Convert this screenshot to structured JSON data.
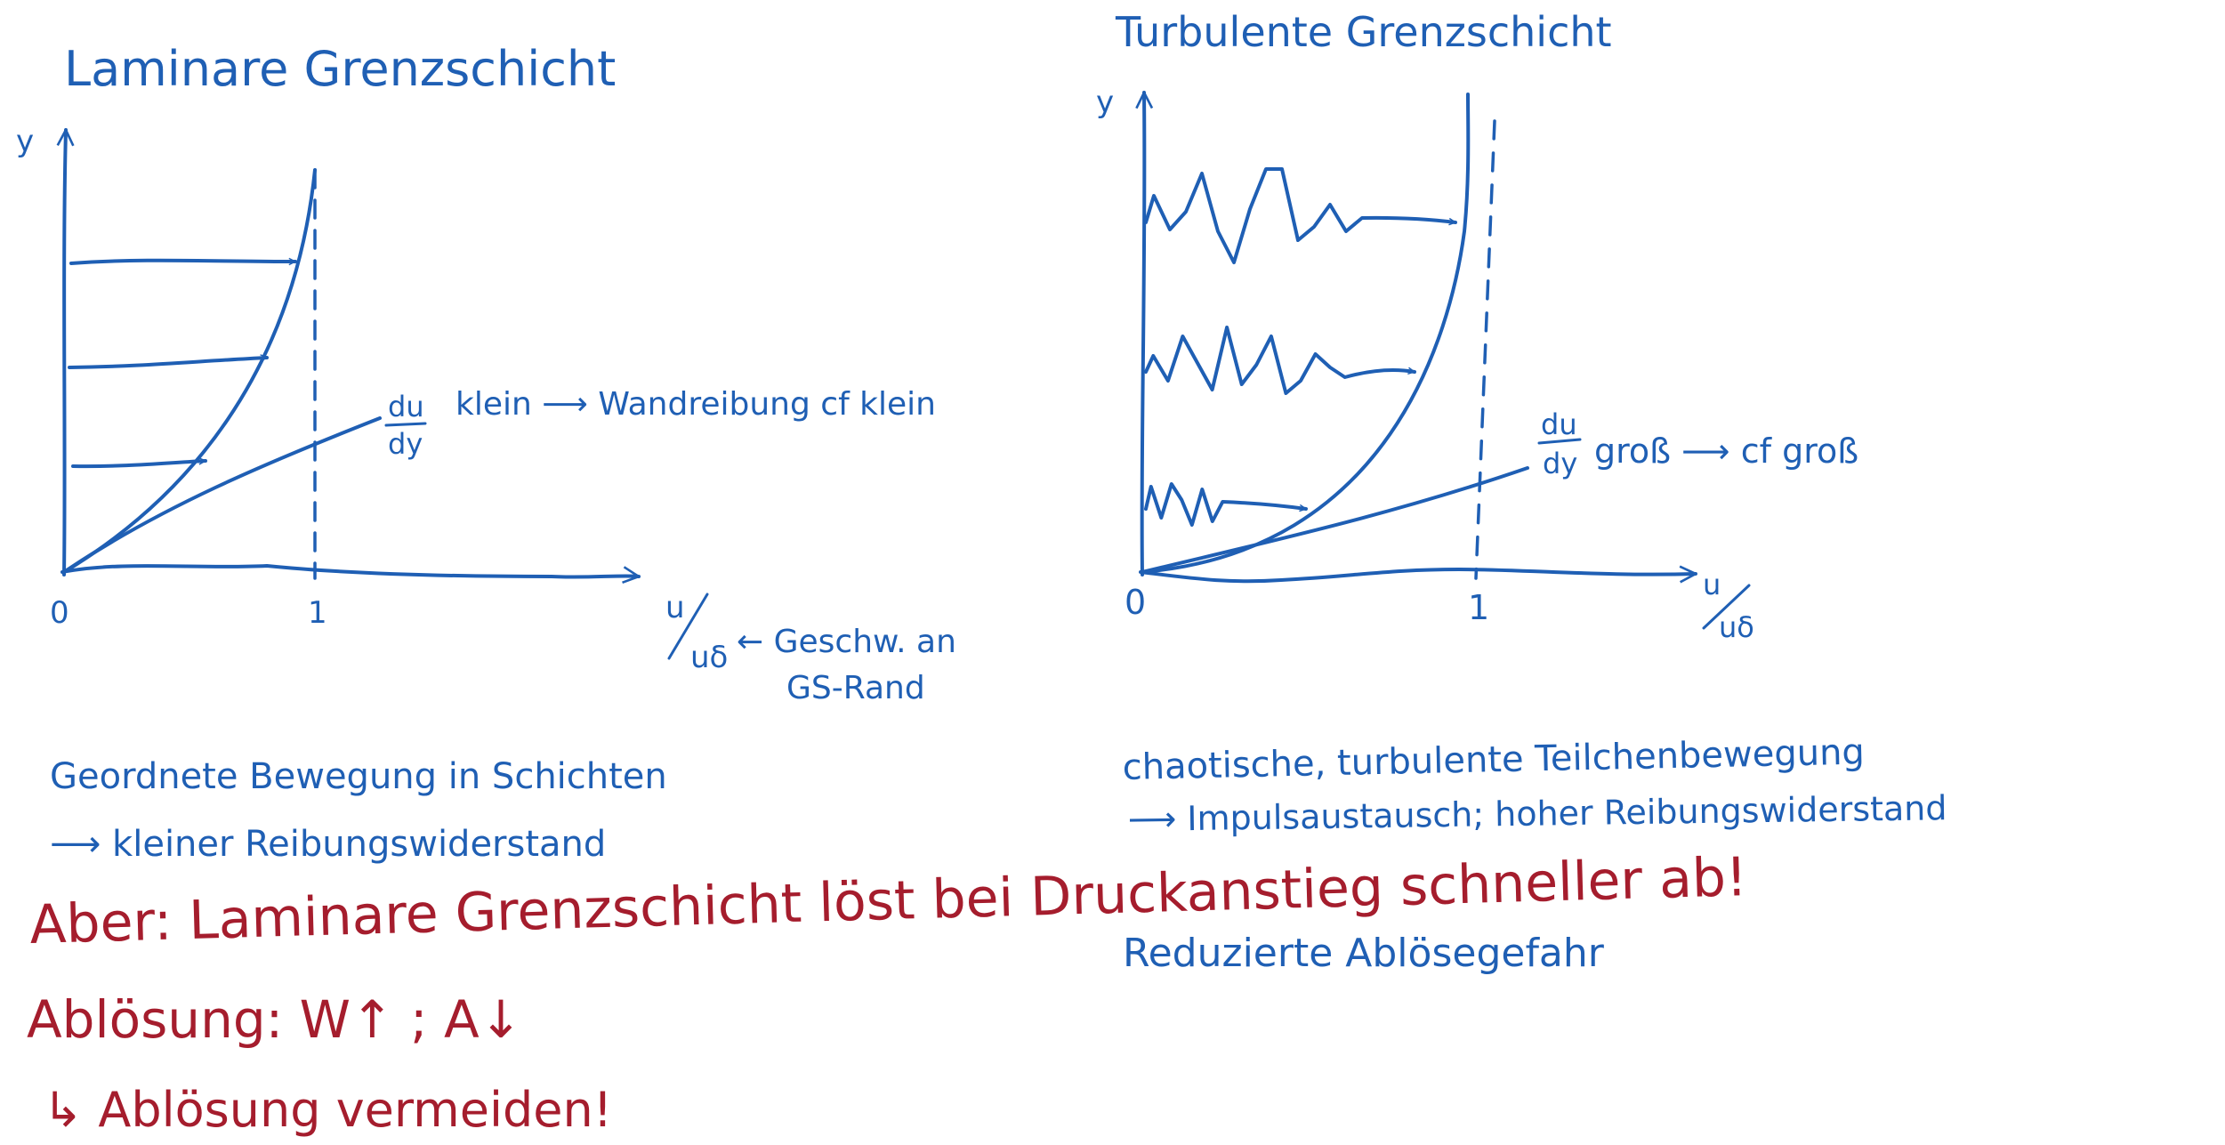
{
  "colors": {
    "blue_ink": "#1f5fb4",
    "red_ink": "#a51d2d",
    "background": "#ffffff"
  },
  "laminar": {
    "title": "Laminare Grenzschicht",
    "y_axis_label": "y",
    "x_axis_label_num": "u",
    "x_axis_label_den": "uδ",
    "tick_0": "0",
    "tick_1": "1",
    "gradient_num": "du",
    "gradient_den": "dy",
    "gradient_note": "klein ⟶ Wandreibung cf klein",
    "edge_note_line1": "← Geschw. an",
    "edge_note_line2": "GS-Rand",
    "desc_line1": "Geordnete Bewegung in Schichten",
    "desc_line2": "⟶ kleiner Reibungswiderstand"
  },
  "turbulent": {
    "title": "Turbulente Grenzschicht",
    "y_axis_label": "y",
    "x_axis_label_num": "u",
    "x_axis_label_den": "uδ",
    "tick_0": "0",
    "tick_1": "1",
    "gradient_num": "du",
    "gradient_den": "dy",
    "gradient_note": "groß ⟶ cf groß",
    "desc_line1": "chaotische, turbulente Teilchenbewegung",
    "desc_line2": "⟶ Impulsaustausch; hoher Reibungswiderstand",
    "desc_line3": "Reduzierte Ablösegefahr"
  },
  "notes": {
    "warning": "Aber: Laminare Grenzschicht löst bei Druckanstieg schneller ab!",
    "separation": "Ablösung: W↑ ; A↓",
    "consequence": "↳ Ablösung vermeiden!"
  }
}
